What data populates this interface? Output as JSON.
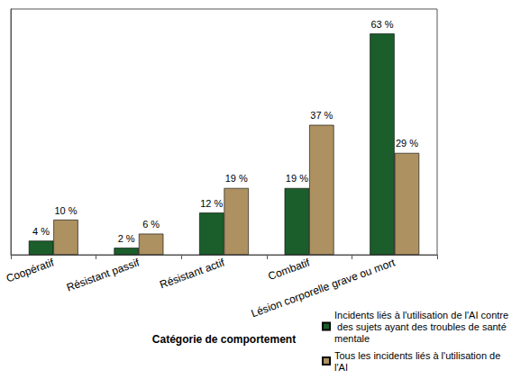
{
  "chart_data": {
    "type": "bar",
    "x_label": "Catégorie de comportement",
    "categories": [
      "Coopératif",
      "Résistant passif",
      "Résistant actif",
      "Combatif",
      "Lésion corporelle grave ou mort"
    ],
    "series": [
      {
        "name": "Incidents liés à l'utilisation de l'AI contre des sujets ayant des troubles de santé mentale",
        "color": "#1b5e2b",
        "values": [
          4,
          2,
          12,
          19,
          63
        ],
        "value_labels": [
          "4 %",
          "2 %",
          "12 %",
          "19 %",
          "63 %"
        ]
      },
      {
        "name": "Tous les incidents liés à l'utilisation de l'AI",
        "color": "#ad9160",
        "values": [
          10,
          6,
          19,
          37,
          29
        ],
        "value_labels": [
          "10 %",
          "6 %",
          "19 %",
          "37 %",
          "29 %"
        ]
      }
    ],
    "ylim": [
      0,
      70
    ],
    "tick_labels": "x",
    "grid": false,
    "data_labels": true,
    "legend": "bottom-right"
  }
}
